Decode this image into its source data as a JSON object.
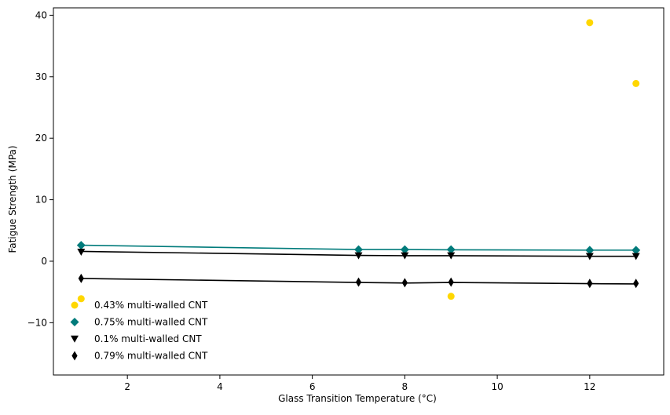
{
  "chart_data": {
    "type": "scatter",
    "title": "",
    "xlabel": "Glass Transition Temperature (°C)",
    "ylabel": "Fatigue Strength (MPa)",
    "xlim": [
      0.4,
      13.6
    ],
    "ylim": [
      -18.5,
      41.2
    ],
    "xticks": [
      2,
      4,
      6,
      8,
      10,
      12
    ],
    "yticks": [
      -10,
      0,
      10,
      20,
      30,
      40
    ],
    "xtick_labels": [
      "2",
      "4",
      "6",
      "8",
      "10",
      "12"
    ],
    "ytick_labels": [
      "−10",
      "0",
      "10",
      "20",
      "30",
      "40"
    ],
    "grid": false,
    "legend_position": "lower-left",
    "series": [
      {
        "name": "0.43% multi-walled CNT",
        "color": "#ffd700",
        "marker": "circle",
        "x": [
          1,
          9,
          12,
          13
        ],
        "y": [
          -6.1,
          -5.7,
          38.8,
          28.9
        ],
        "fit_line": null
      },
      {
        "name": "0.75% multi-walled CNT",
        "color": "#007b7b",
        "marker": "diamond",
        "x": [
          1,
          7,
          8,
          9,
          12,
          13
        ],
        "y": [
          2.6,
          1.9,
          1.9,
          1.9,
          1.8,
          1.8
        ],
        "fit_line": {
          "color": "#007b7b",
          "x": [
            1,
            7,
            8,
            9,
            12,
            13
          ],
          "y": [
            2.6,
            1.9,
            1.9,
            1.85,
            1.8,
            1.8
          ]
        }
      },
      {
        "name": "0.1% multi-walled CNT",
        "color": "#000000",
        "marker": "triangle-down",
        "x": [
          1,
          7,
          8,
          9,
          12,
          13
        ],
        "y": [
          1.5,
          0.9,
          0.9,
          0.9,
          0.8,
          0.8
        ],
        "fit_line": {
          "color": "#000000",
          "x": [
            1,
            7,
            8,
            9,
            12,
            13
          ],
          "y": [
            1.6,
            0.95,
            0.9,
            0.9,
            0.8,
            0.8
          ]
        }
      },
      {
        "name": "0.79% multi-walled CNT",
        "color": "#000000",
        "marker": "thin-diamond",
        "x": [
          1,
          7,
          8,
          9,
          12,
          13
        ],
        "y": [
          -2.8,
          -3.4,
          -3.5,
          -3.4,
          -3.6,
          -3.6
        ],
        "fit_line": {
          "color": "#000000",
          "x": [
            1,
            7,
            8,
            9,
            12,
            13
          ],
          "y": [
            -2.8,
            -3.45,
            -3.55,
            -3.45,
            -3.65,
            -3.7
          ]
        }
      }
    ]
  }
}
